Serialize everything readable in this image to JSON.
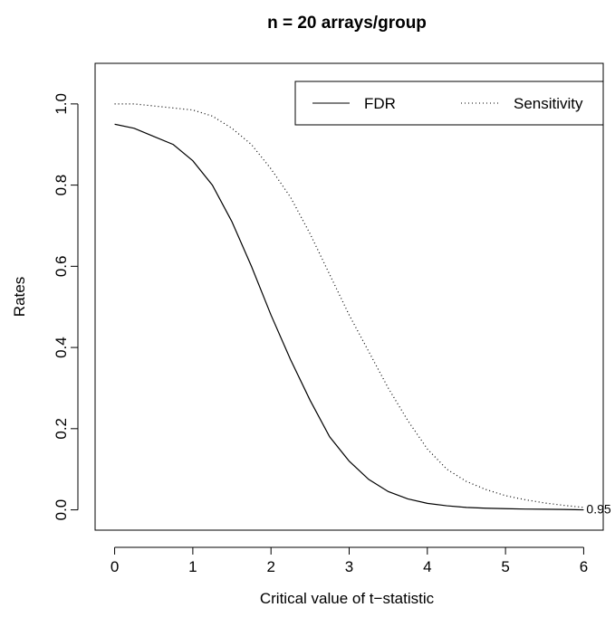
{
  "chart_data": {
    "type": "line",
    "title": "n = 20 arrays/group",
    "xlabel": "Critical value of t−statistic",
    "ylabel": "Rates",
    "xlim": [
      -0.25,
      6.25
    ],
    "ylim": [
      -0.05,
      1.1
    ],
    "x_ticks": [
      "0",
      "1",
      "2",
      "3",
      "4",
      "5",
      "6"
    ],
    "y_ticks": [
      "0.0",
      "0.2",
      "0.4",
      "0.6",
      "0.8",
      "1.0"
    ],
    "legend_position": "top-right",
    "annotation": {
      "text": "0.95",
      "x": 6,
      "y": 0
    },
    "series": [
      {
        "name": "FDR",
        "line_style": "solid",
        "color": "#000000",
        "x": [
          0,
          0.25,
          0.5,
          0.75,
          1.0,
          1.25,
          1.5,
          1.75,
          2.0,
          2.25,
          2.5,
          2.75,
          3.0,
          3.25,
          3.5,
          3.75,
          4.0,
          4.25,
          4.5,
          4.75,
          5.0,
          5.25,
          5.5,
          5.75,
          6.0
        ],
        "y": [
          0.95,
          0.94,
          0.92,
          0.9,
          0.86,
          0.8,
          0.71,
          0.6,
          0.48,
          0.37,
          0.27,
          0.18,
          0.12,
          0.075,
          0.045,
          0.027,
          0.016,
          0.01,
          0.006,
          0.004,
          0.003,
          0.002,
          0.0015,
          0.001,
          0.0
        ]
      },
      {
        "name": "Sensitivity",
        "line_style": "dotted",
        "color": "#000000",
        "x": [
          0,
          0.25,
          0.5,
          0.75,
          1.0,
          1.25,
          1.5,
          1.75,
          2.0,
          2.25,
          2.5,
          2.75,
          3.0,
          3.25,
          3.5,
          3.75,
          4.0,
          4.25,
          4.5,
          4.75,
          5.0,
          5.25,
          5.5,
          5.75,
          6.0
        ],
        "y": [
          1.0,
          1.0,
          0.995,
          0.99,
          0.985,
          0.97,
          0.94,
          0.9,
          0.84,
          0.77,
          0.68,
          0.58,
          0.48,
          0.39,
          0.3,
          0.22,
          0.15,
          0.1,
          0.07,
          0.05,
          0.035,
          0.025,
          0.017,
          0.011,
          0.006
        ]
      }
    ]
  }
}
